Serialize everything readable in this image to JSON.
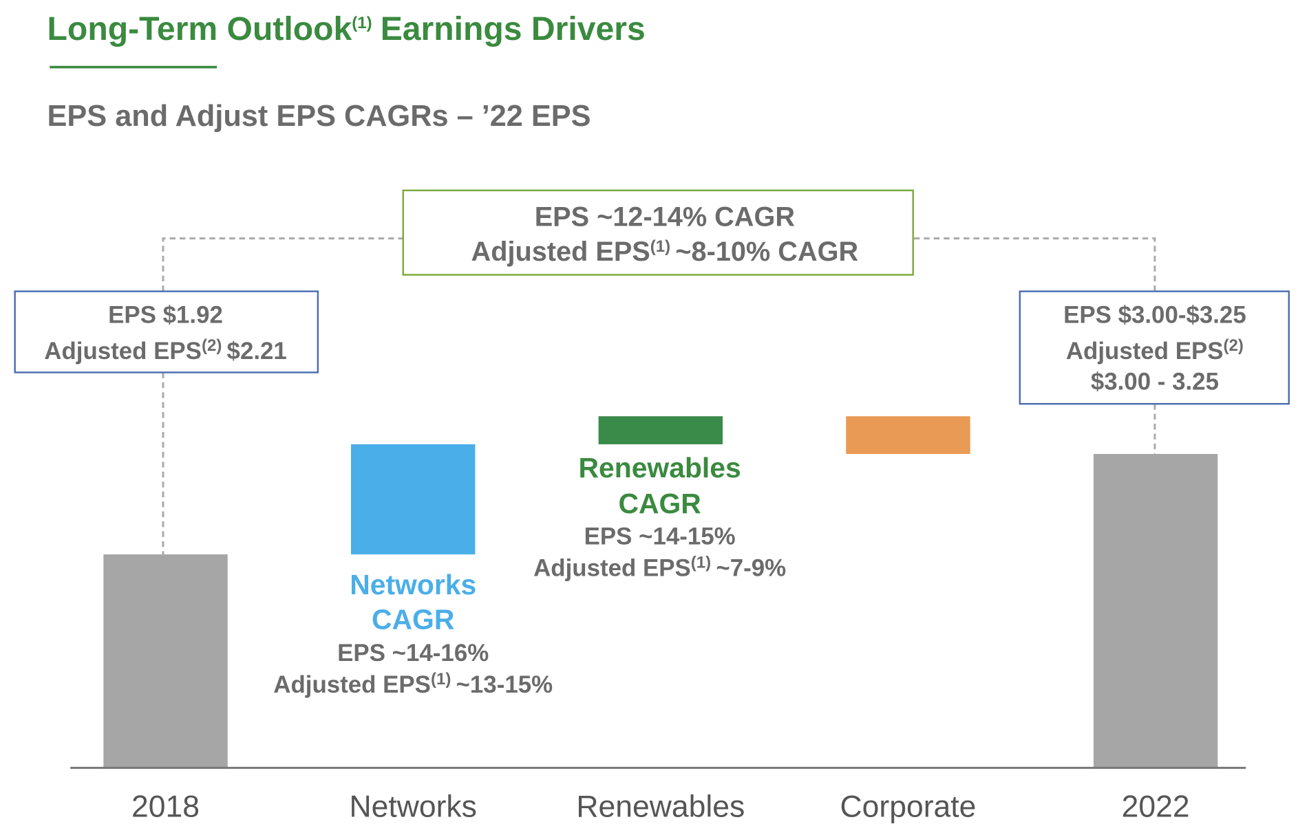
{
  "chart_data": {
    "type": "waterfall",
    "title": {
      "text": "Long-Term Outlook",
      "sup": "(1)",
      "rest": "Earnings Drivers"
    },
    "subtitle": "EPS and Adjust EPS CAGRs – ’22 EPS",
    "categories": [
      "2018",
      "Networks",
      "Renewables",
      "Corporate",
      "2022"
    ],
    "values": [
      2.21,
      1.14,
      0.29,
      -0.39,
      3.25
    ],
    "is_total": [
      true,
      false,
      false,
      false,
      true
    ],
    "colors": [
      "#a6a6a6",
      "#4aaee8",
      "#3a8a4a",
      "#e99a55",
      "#a6a6a6"
    ],
    "annotations": {
      "overall": {
        "line1": "EPS ~12-14% CAGR",
        "line2": {
          "text": "Adjusted EPS",
          "sup": "(1)",
          "rest": "~8-10% CAGR"
        }
      },
      "start": {
        "line1": "EPS $1.92",
        "line2": {
          "text": "Adjusted EPS",
          "sup": "(2)",
          "rest": "$2.21"
        }
      },
      "end": {
        "line1": "EPS $3.00-$3.25",
        "line2": {
          "text": "Adjusted EPS",
          "sup": "(2)"
        },
        "line3": "$3.00 - 3.25"
      },
      "networks": {
        "name": "Networks",
        "cagr": "CAGR",
        "eps": "EPS ~14-16%",
        "adj": {
          "text": "Adjusted EPS",
          "sup": "(1)",
          "rest": "~13-15%"
        }
      },
      "renewables": {
        "name": "Renewables",
        "cagr": "CAGR",
        "eps": "EPS ~14-15%",
        "adj": {
          "text": "Adjusted EPS",
          "sup": "(1)",
          "rest": "~7-9%"
        }
      }
    }
  }
}
